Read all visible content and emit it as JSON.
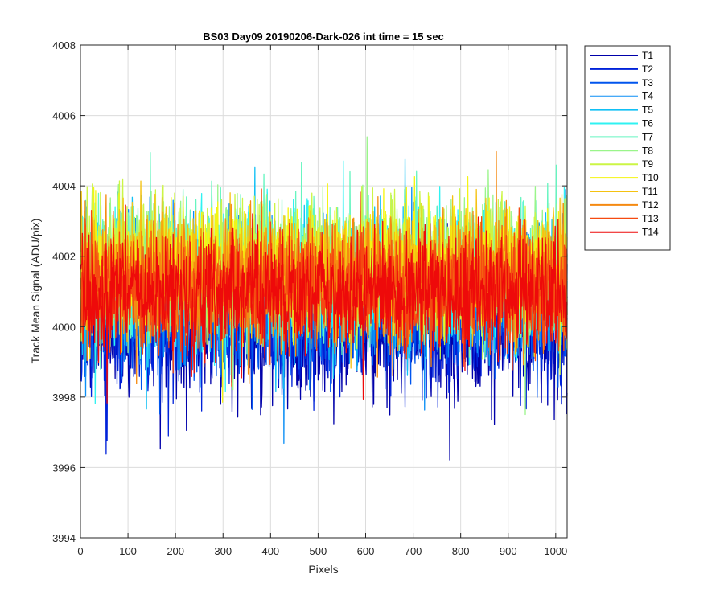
{
  "chart_data": {
    "type": "line",
    "title": "BS03 Day09 20190206-Dark-026 int time = 15 sec",
    "xlabel": "Pixels",
    "ylabel": "Track Mean Signal (ADU/pix)",
    "xlim": [
      0,
      1024
    ],
    "ylim": [
      3994,
      4008
    ],
    "xticks": [
      0,
      100,
      200,
      300,
      400,
      500,
      600,
      700,
      800,
      900,
      1000
    ],
    "yticks": [
      3994,
      3996,
      3998,
      4000,
      4002,
      4004,
      4006,
      4008
    ],
    "grid": true,
    "legend_position": "outside-top-right",
    "x": "pixel index 1 to 1024",
    "series_summary": "14 noisy dark-frame traces centred near 4001 ADU/pix, typical spread 3998-4005, extremes 3995.4 (T1 near x=632) and 4006.7 (T11 near x=360)",
    "series": [
      {
        "name": "T1",
        "color": "#0000aa",
        "mean": 3999.9,
        "spread": 1.5
      },
      {
        "name": "T2",
        "color": "#0022d9",
        "mean": 4000.2,
        "spread": 1.5
      },
      {
        "name": "T3",
        "color": "#0055ee",
        "mean": 4000.6,
        "spread": 1.5
      },
      {
        "name": "T4",
        "color": "#0a8ef5",
        "mean": 4000.9,
        "spread": 1.5
      },
      {
        "name": "T5",
        "color": "#11c0f5",
        "mean": 4001.2,
        "spread": 1.5
      },
      {
        "name": "T6",
        "color": "#2ff2f2",
        "mean": 4001.4,
        "spread": 1.5
      },
      {
        "name": "T7",
        "color": "#66f5c0",
        "mean": 4001.6,
        "spread": 1.5
      },
      {
        "name": "T8",
        "color": "#9af58a",
        "mean": 4001.7,
        "spread": 1.5
      },
      {
        "name": "T9",
        "color": "#ccf545",
        "mean": 4001.7,
        "spread": 1.5
      },
      {
        "name": "T10",
        "color": "#f5f511",
        "mean": 4001.6,
        "spread": 1.4
      },
      {
        "name": "T11",
        "color": "#f5c211",
        "mean": 4001.5,
        "spread": 1.4
      },
      {
        "name": "T12",
        "color": "#f58a11",
        "mean": 4001.3,
        "spread": 1.4
      },
      {
        "name": "T13",
        "color": "#f54a11",
        "mean": 4001.1,
        "spread": 1.3
      },
      {
        "name": "T14",
        "color": "#ee0a0a",
        "mean": 4000.9,
        "spread": 1.3
      }
    ]
  }
}
